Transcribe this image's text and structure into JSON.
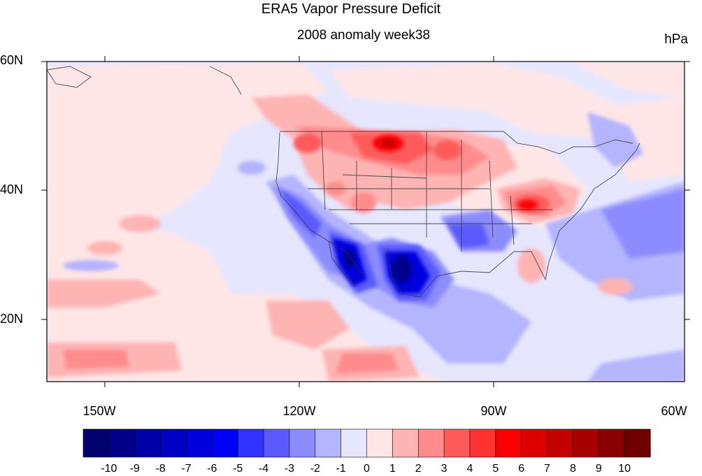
{
  "title": "ERA5 Vapor Pressure Deficit",
  "subtitle": "2008 anomaly week38",
  "units": "hPa",
  "map": {
    "lon_range": [
      -160,
      -60
    ],
    "lat_range": [
      10,
      60
    ],
    "y_ticks": [
      "20N",
      "40N",
      "60N"
    ],
    "x_ticks": [
      "150W",
      "120W",
      "90W",
      "60W"
    ]
  },
  "colorbar": {
    "labels": [
      "-10",
      "-9",
      "-8",
      "-7",
      "-6",
      "-5",
      "-4",
      "-3",
      "-2",
      "-1",
      "0",
      "1",
      "2",
      "3",
      "4",
      "5",
      "6",
      "7",
      "8",
      "9",
      "10"
    ],
    "colors": [
      "#00006e",
      "#00008a",
      "#0000a8",
      "#0000c4",
      "#0000de",
      "#0000fa",
      "#3232ff",
      "#5a5aff",
      "#8c8cff",
      "#b4b4ff",
      "#e6e6ff",
      "#ffe6e6",
      "#ffb4b4",
      "#ff8c8c",
      "#ff5a5a",
      "#ff3232",
      "#fa0000",
      "#de0000",
      "#c40000",
      "#a80000",
      "#8a0000",
      "#6e0000"
    ]
  }
}
